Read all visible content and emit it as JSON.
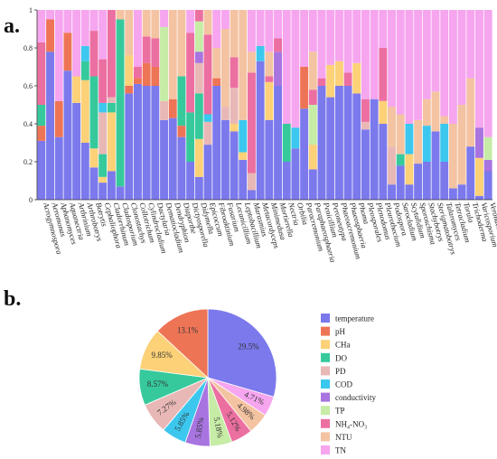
{
  "panels": {
    "a": "a.",
    "b": "b."
  },
  "colors": {
    "temperature": "#7b79ec",
    "pH": "#ee7456",
    "CHa": "#fcd177",
    "DO": "#36c99c",
    "PD": "#e8b8b6",
    "COD": "#3cc7ee",
    "conductivity": "#a874e0",
    "TP": "#c6eca6",
    "NH4NO3": "#ec6fa1",
    "NTU": "#f4c3a2",
    "TN": "#f6a5ef"
  },
  "chart_data": [
    {
      "type": "bar",
      "stacked": true,
      "ylim": [
        0,
        1
      ],
      "yticks": [
        "0",
        "0.2",
        "0.4",
        "0.6",
        "0.8",
        "1"
      ],
      "categories": [
        "Acrogymnospora",
        "Aeromonas",
        "Aphanomyces",
        "Aquanectria",
        "Arthrinium",
        "Arthrobotrys",
        "Botrytis",
        "Cephaliophora",
        "Cladorrhinum",
        "Cladosporium",
        "Clonostachys",
        "Collotrichum",
        "Cylindrocladium",
        "Dactylaria",
        "Dematiocladium",
        "Dendryphion",
        "Diaporthe",
        "Dictyosporella",
        "Didymella",
        "Epicoccum",
        "Fibroaktinium",
        "Fusarium",
        "Lecanicillium",
        "Leptobacillium",
        "Marasmius",
        "Metacordyceps",
        "Minimedusa",
        "Mortierella",
        "Nectria",
        "Orbilia",
        "Paracremonium",
        "Paraphaeosphaeria",
        "Penicillium",
        "Peroneutypa",
        "Phaeoacremonium",
        "Phaeosphaeria",
        "Phoma",
        "Pleosporales",
        "Plenodomus",
        "Pleurothecium",
        "Podospora",
        "Sarocladium",
        "Scytalidium",
        "Sporoschisma",
        "Stachybotrys",
        "Sterigmatobotrys",
        "Talaromyces",
        "Tetracladium",
        "Torula",
        "Trichoderma",
        "Varicosporium",
        "Veronaea"
      ],
      "series_order": [
        "temperature",
        "pH",
        "CHa",
        "DO",
        "PD",
        "COD",
        "conductivity",
        "TP",
        "NH4NO3",
        "NTU",
        "TN"
      ],
      "values": [
        [
          0.31,
          0.08,
          0.0,
          0.11,
          0.0,
          0.0,
          0.0,
          0.0,
          0.33,
          0.0,
          0.17
        ],
        [
          0.78,
          0.17,
          0.0,
          0.0,
          0.0,
          0.0,
          0.0,
          0.0,
          0.0,
          0.0,
          0.05
        ],
        [
          0.33,
          0.19,
          0.0,
          0.0,
          0.0,
          0.0,
          0.0,
          0.0,
          0.0,
          0.0,
          0.48
        ],
        [
          0.68,
          0.2,
          0.0,
          0.0,
          0.0,
          0.0,
          0.0,
          0.0,
          0.0,
          0.0,
          0.12
        ],
        [
          0.51,
          0.0,
          0.14,
          0.0,
          0.0,
          0.0,
          0.0,
          0.0,
          0.0,
          0.0,
          0.35
        ],
        [
          0.3,
          0.0,
          0.33,
          0.1,
          0.0,
          0.08,
          0.0,
          0.0,
          0.0,
          0.0,
          0.19
        ],
        [
          0.17,
          0.0,
          0.1,
          0.38,
          0.0,
          0.0,
          0.0,
          0.0,
          0.24,
          0.0,
          0.11
        ],
        [
          0.09,
          0.0,
          0.03,
          0.12,
          0.22,
          0.05,
          0.0,
          0.0,
          0.23,
          0.0,
          0.26
        ],
        [
          0.15,
          0.0,
          0.31,
          0.05,
          0.03,
          0.0,
          0.0,
          0.0,
          0.46,
          0.0,
          0.0
        ],
        [
          0.07,
          0.0,
          0.0,
          0.88,
          0.0,
          0.0,
          0.0,
          0.0,
          0.0,
          0.05,
          0.0
        ],
        [
          0.56,
          0.04,
          0.16,
          0.0,
          0.0,
          0.0,
          0.0,
          0.0,
          0.0,
          0.24,
          0.0
        ],
        [
          0.61,
          0.03,
          0.0,
          0.0,
          0.0,
          0.0,
          0.0,
          0.0,
          0.06,
          0.0,
          0.3
        ],
        [
          0.6,
          0.12,
          0.0,
          0.0,
          0.0,
          0.0,
          0.0,
          0.0,
          0.14,
          0.14,
          0.0
        ],
        [
          0.6,
          0.1,
          0.0,
          0.0,
          0.0,
          0.0,
          0.0,
          0.0,
          0.15,
          0.15,
          0.0
        ],
        [
          0.42,
          0.0,
          0.0,
          0.0,
          0.1,
          0.0,
          0.0,
          0.39,
          0.0,
          0.0,
          0.09
        ],
        [
          0.43,
          0.1,
          0.0,
          0.0,
          0.0,
          0.0,
          0.0,
          0.0,
          0.0,
          0.47,
          0.0
        ],
        [
          0.33,
          0.06,
          0.0,
          0.26,
          0.0,
          0.0,
          0.0,
          0.0,
          0.0,
          0.35,
          0.0
        ],
        [
          0.2,
          0.0,
          0.0,
          0.26,
          0.0,
          0.0,
          0.0,
          0.0,
          0.42,
          0.0,
          0.12
        ],
        [
          0.12,
          0.0,
          0.2,
          0.24,
          0.16,
          0.0,
          0.06,
          0.16,
          0.06,
          0.0,
          0.0
        ],
        [
          0.29,
          0.0,
          0.0,
          0.0,
          0.12,
          0.04,
          0.0,
          0.0,
          0.42,
          0.13,
          0.0
        ],
        [
          0.6,
          0.04,
          0.0,
          0.0,
          0.0,
          0.0,
          0.0,
          0.0,
          0.0,
          0.16,
          0.2
        ],
        [
          0.42,
          0.0,
          0.0,
          0.0,
          0.07,
          0.0,
          0.0,
          0.0,
          0.0,
          0.41,
          0.1
        ],
        [
          0.36,
          0.0,
          0.04,
          0.0,
          0.19,
          0.0,
          0.0,
          0.0,
          0.16,
          0.25,
          0.0
        ],
        [
          0.21,
          0.0,
          0.04,
          0.0,
          0.0,
          0.17,
          0.0,
          0.0,
          0.0,
          0.58,
          0.0
        ],
        [
          0.05,
          0.0,
          0.0,
          0.0,
          0.09,
          0.0,
          0.0,
          0.0,
          0.53,
          0.11,
          0.22
        ],
        [
          0.73,
          0.0,
          0.0,
          0.0,
          0.0,
          0.08,
          0.0,
          0.0,
          0.0,
          0.0,
          0.19
        ],
        [
          0.42,
          0.0,
          0.2,
          0.0,
          0.0,
          0.0,
          0.0,
          0.0,
          0.03,
          0.13,
          0.22
        ],
        [
          0.6,
          0.0,
          0.0,
          0.0,
          0.0,
          0.0,
          0.18,
          0.0,
          0.07,
          0.0,
          0.15
        ],
        [
          0.2,
          0.0,
          0.0,
          0.2,
          0.0,
          0.0,
          0.0,
          0.0,
          0.0,
          0.0,
          0.6
        ],
        [
          0.27,
          0.0,
          0.0,
          0.0,
          0.0,
          0.11,
          0.0,
          0.0,
          0.0,
          0.0,
          0.62
        ],
        [
          0.48,
          0.22,
          0.0,
          0.0,
          0.0,
          0.0,
          0.0,
          0.0,
          0.0,
          0.0,
          0.3
        ],
        [
          0.16,
          0.0,
          0.13,
          0.0,
          0.0,
          0.0,
          0.0,
          0.21,
          0.08,
          0.2,
          0.22
        ],
        [
          0.6,
          0.0,
          0.0,
          0.0,
          0.0,
          0.0,
          0.0,
          0.0,
          0.04,
          0.0,
          0.36
        ],
        [
          0.54,
          0.0,
          0.17,
          0.0,
          0.0,
          0.0,
          0.0,
          0.0,
          0.0,
          0.0,
          0.29
        ],
        [
          0.6,
          0.0,
          0.13,
          0.0,
          0.0,
          0.0,
          0.0,
          0.0,
          0.0,
          0.0,
          0.27
        ],
        [
          0.6,
          0.0,
          0.0,
          0.0,
          0.0,
          0.0,
          0.0,
          0.0,
          0.07,
          0.0,
          0.33
        ],
        [
          0.56,
          0.0,
          0.16,
          0.0,
          0.0,
          0.0,
          0.0,
          0.0,
          0.0,
          0.0,
          0.28
        ],
        [
          0.37,
          0.0,
          0.0,
          0.0,
          0.04,
          0.0,
          0.0,
          0.0,
          0.12,
          0.0,
          0.47
        ],
        [
          0.53,
          0.0,
          0.0,
          0.0,
          0.0,
          0.0,
          0.0,
          0.0,
          0.0,
          0.0,
          0.47
        ],
        [
          0.4,
          0.0,
          0.12,
          0.0,
          0.0,
          0.0,
          0.0,
          0.0,
          0.28,
          0.0,
          0.2
        ],
        [
          0.08,
          0.0,
          0.0,
          0.0,
          0.2,
          0.0,
          0.0,
          0.0,
          0.0,
          0.21,
          0.51
        ],
        [
          0.18,
          0.0,
          0.0,
          0.06,
          0.0,
          0.0,
          0.0,
          0.0,
          0.0,
          0.21,
          0.55
        ],
        [
          0.08,
          0.0,
          0.16,
          0.0,
          0.0,
          0.16,
          0.0,
          0.0,
          0.0,
          0.0,
          0.6
        ],
        [
          0.19,
          0.0,
          0.0,
          0.0,
          0.0,
          0.0,
          0.0,
          0.0,
          0.0,
          0.23,
          0.58
        ],
        [
          0.2,
          0.0,
          0.0,
          0.0,
          0.0,
          0.19,
          0.0,
          0.0,
          0.0,
          0.14,
          0.47
        ],
        [
          0.36,
          0.0,
          0.0,
          0.0,
          0.0,
          0.0,
          0.0,
          0.0,
          0.0,
          0.21,
          0.43
        ],
        [
          0.2,
          0.0,
          0.0,
          0.0,
          0.0,
          0.2,
          0.0,
          0.0,
          0.0,
          0.04,
          0.56
        ],
        [
          0.06,
          0.0,
          0.0,
          0.0,
          0.0,
          0.0,
          0.0,
          0.0,
          0.0,
          0.34,
          0.6
        ],
        [
          0.08,
          0.0,
          0.0,
          0.0,
          0.0,
          0.0,
          0.0,
          0.0,
          0.0,
          0.42,
          0.5
        ],
        [
          0.28,
          0.0,
          0.0,
          0.0,
          0.0,
          0.0,
          0.0,
          0.0,
          0.0,
          0.36,
          0.36
        ],
        [
          0.02,
          0.0,
          0.2,
          0.0,
          0.0,
          0.0,
          0.16,
          0.0,
          0.0,
          0.0,
          0.62
        ],
        [
          0.15,
          0.0,
          0.0,
          0.0,
          0.0,
          0.0,
          0.06,
          0.12,
          0.0,
          0.0,
          0.67
        ]
      ]
    },
    {
      "type": "pie",
      "slices": [
        {
          "name": "temperature",
          "value": 29.5,
          "label": "29.5%"
        },
        {
          "name": "TN",
          "value": 4.71,
          "label": "4.71%"
        },
        {
          "name": "NTU",
          "value": 4.98,
          "label": "4.98%"
        },
        {
          "name": "NH4NO3",
          "value": 5.12,
          "label": "5.12%"
        },
        {
          "name": "TP",
          "value": 5.18,
          "label": "5.18%"
        },
        {
          "name": "conductivity",
          "value": 5.85,
          "label": "5.85%"
        },
        {
          "name": "COD",
          "value": 5.85,
          "label": "5.85%"
        },
        {
          "name": "PD",
          "value": 7.27,
          "label": "7.27%"
        },
        {
          "name": "DO",
          "value": 8.57,
          "label": "8.57%"
        },
        {
          "name": "CHa",
          "value": 9.85,
          "label": "9.85%"
        },
        {
          "name": "pH",
          "value": 13.1,
          "label": "13.1%"
        }
      ],
      "legend_position": "right",
      "legend": [
        {
          "key": "temperature",
          "label": "temperature"
        },
        {
          "key": "pH",
          "label": "pH"
        },
        {
          "key": "CHa",
          "label": "CHa"
        },
        {
          "key": "DO",
          "label": "DO"
        },
        {
          "key": "PD",
          "label": "PD"
        },
        {
          "key": "COD",
          "label": "COD"
        },
        {
          "key": "conductivity",
          "label": "conductivity"
        },
        {
          "key": "TP",
          "label": "TP"
        },
        {
          "key": "NH4NO3",
          "label": "NH₄-NO₃"
        },
        {
          "key": "NTU",
          "label": "NTU"
        },
        {
          "key": "TN",
          "label": "TN"
        }
      ]
    }
  ]
}
